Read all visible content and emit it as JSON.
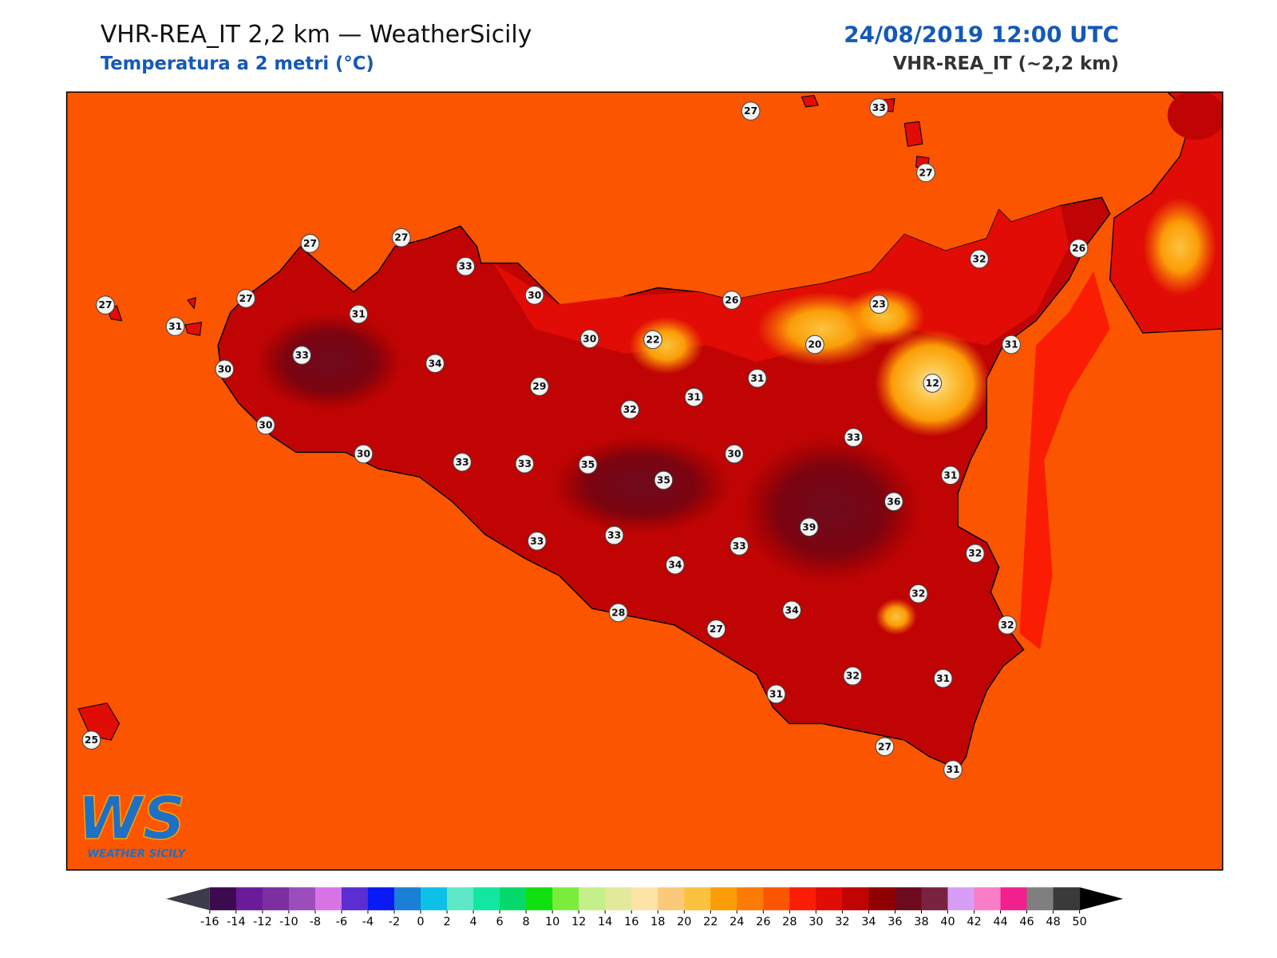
{
  "header": {
    "title": "VHR-REA_IT 2,2 km — WeatherSicily",
    "subtitle": "Temperatura a 2 metri (°C)",
    "date": "24/08/2019 12:00 UTC",
    "model": "VHR-REA_IT (~2,2 km)"
  },
  "stations": [
    27,
    33,
    27,
    27,
    27,
    33,
    30,
    27,
    27,
    31,
    31,
    26,
    23,
    32,
    26,
    33,
    30,
    34,
    30,
    22,
    20,
    31,
    29,
    31,
    12,
    32,
    31,
    30,
    30,
    33,
    33,
    33,
    35,
    35,
    30,
    31,
    36,
    39,
    33,
    33,
    33,
    34,
    32,
    32,
    28,
    27,
    34,
    32,
    32,
    31,
    31,
    27,
    31,
    25
  ],
  "colorbar": {
    "ticks": [
      -16,
      -14,
      -12,
      -10,
      -8,
      -6,
      -4,
      -2,
      0,
      2,
      4,
      6,
      8,
      10,
      12,
      14,
      16,
      18,
      20,
      22,
      24,
      26,
      28,
      30,
      32,
      34,
      36,
      38,
      40,
      42,
      44,
      46,
      48,
      50
    ],
    "colors": [
      "#3d0a4f",
      "#6a1b9a",
      "#7b2fa0",
      "#9b4dbb",
      "#d873e6",
      "#5b2ed1",
      "#0a1af5",
      "#1a7fd6",
      "#0cc0e6",
      "#5ee8c8",
      "#12e6a0",
      "#06d96a",
      "#10e010",
      "#7cec3c",
      "#c5ef8a",
      "#e3e99a",
      "#fde3a6",
      "#fbc97a",
      "#fcc23f",
      "#fb9d06",
      "#fb7b08",
      "#fb5500",
      "#fb1c04",
      "#e00c05",
      "#c00404",
      "#8f0000",
      "#6e0a1e",
      "#7a2340",
      "#d89ef5",
      "#fa7dc8",
      "#f2208e",
      "#7f7f7f",
      "#3a3a3a"
    ],
    "under_color": "#3b3b4a",
    "over_color": "#000000"
  },
  "logo": {
    "mark": "WS",
    "name": "WEATHER SICILY"
  }
}
